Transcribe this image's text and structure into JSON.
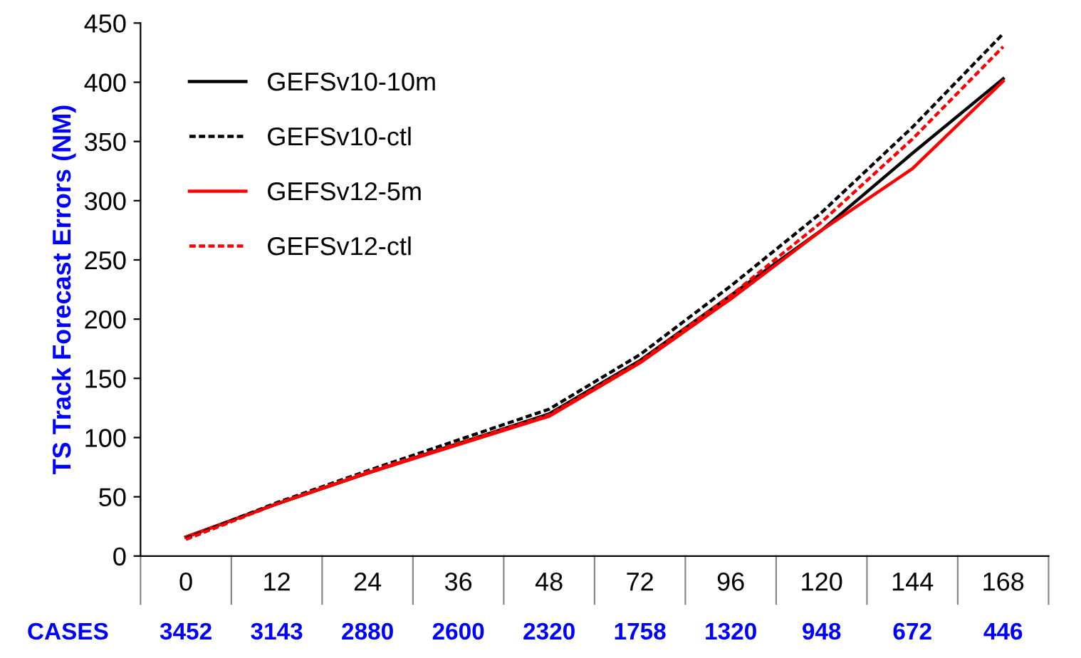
{
  "chart_data": {
    "type": "line",
    "ylabel": "TS Track Forecast Errors (NM)",
    "categories": [
      "0",
      "12",
      "24",
      "36",
      "48",
      "72",
      "96",
      "120",
      "144",
      "168"
    ],
    "ylim": [
      0,
      450
    ],
    "yticks": [
      0,
      50,
      100,
      150,
      200,
      250,
      300,
      350,
      400,
      450
    ],
    "grid": false,
    "legend": "top left",
    "marker": "none",
    "series": [
      {
        "name": "GEFSv10-10m",
        "color": "#000000",
        "line_style": "solid",
        "values": [
          16,
          44,
          70,
          95,
          120,
          165,
          220,
          275,
          340,
          403
        ]
      },
      {
        "name": "GEFSv10-ctl",
        "color": "#000000",
        "line_style": "dashed",
        "values": [
          15,
          45,
          72,
          98,
          124,
          170,
          228,
          290,
          362,
          441
        ]
      },
      {
        "name": "GEFSv12-5m",
        "color": "#ff0000",
        "line_style": "solid",
        "values": [
          16,
          44,
          70,
          94,
          118,
          163,
          217,
          275,
          327,
          401
        ]
      },
      {
        "name": "GEFSv12-ctl",
        "color": "#ff0000",
        "line_style": "dashed",
        "values": [
          14,
          44,
          71,
          95,
          119,
          164,
          220,
          282,
          352,
          430
        ]
      }
    ],
    "annotations": [
      "CASES",
      "3452",
      "3143",
      "2880",
      "2600",
      "2320",
      "1758",
      "1320",
      "948",
      "672",
      "446"
    ]
  }
}
